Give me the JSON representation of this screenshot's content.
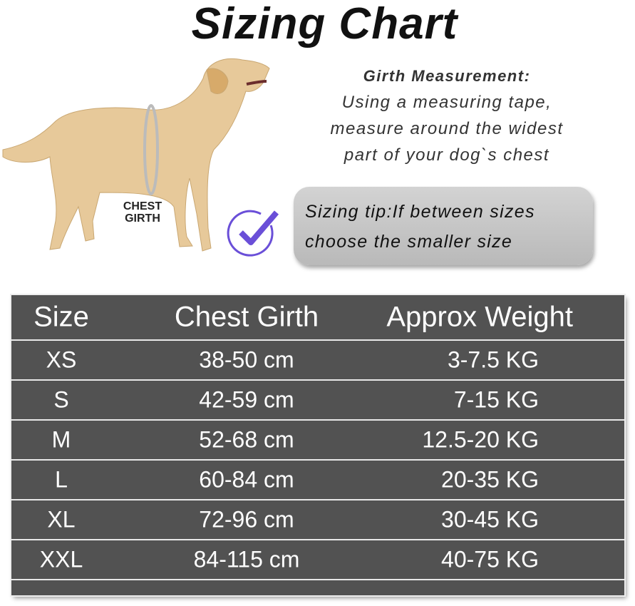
{
  "title": "Sizing Chart",
  "illustration": {
    "label_line1": "CHEST",
    "label_line2": "GIRTH"
  },
  "girth_measurement": {
    "heading": "Girth Measurement:",
    "lines": [
      "Using a measuring tape,",
      "measure around the widest",
      "part of your dog`s chest"
    ]
  },
  "sizing_tip": {
    "line1": "Sizing tip:If between sizes",
    "line2": "choose the smaller size",
    "icon": "check-circle-icon",
    "icon_color": "#6a4fd8"
  },
  "table": {
    "headers": [
      "Size",
      "Chest Girth",
      "Approx Weight"
    ],
    "rows": [
      [
        "XS",
        "38-50 cm",
        "3-7.5 KG"
      ],
      [
        "S",
        "42-59 cm",
        "7-15 KG"
      ],
      [
        "M",
        "52-68 cm",
        "12.5-20 KG"
      ],
      [
        "L",
        "60-84 cm",
        "20-35 KG"
      ],
      [
        "XL",
        "72-96 cm",
        "30-45 KG"
      ],
      [
        "XXL",
        "84-115 cm",
        "40-75 KG"
      ]
    ]
  }
}
